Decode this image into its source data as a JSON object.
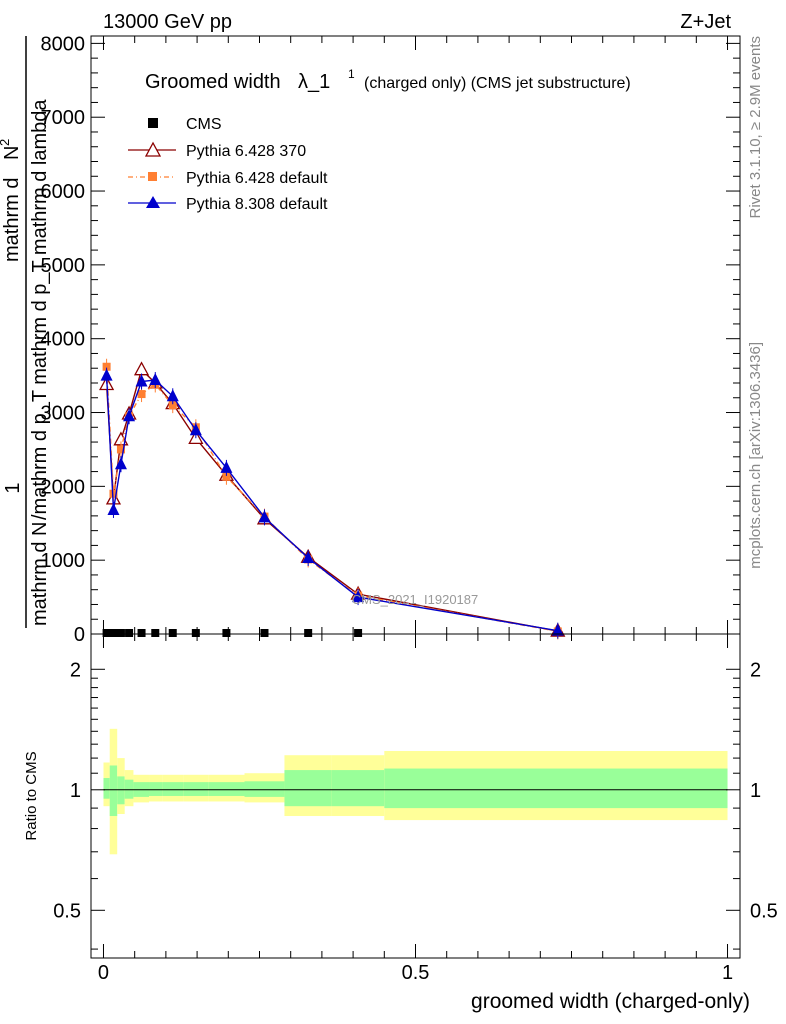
{
  "header": {
    "left": "13000 GeV pp",
    "right": "Z+Jet"
  },
  "side_text": {
    "rivet": "Rivet 3.1.10, ≥ 2.9M events",
    "mcplots": "mcplots.cern.ch [arXiv:1306.3436]"
  },
  "watermark": "CMS_2021_I1920187",
  "chart_data": [
    {
      "type": "line",
      "title_main": "Groomed width",
      "title_symbol": "λ_1",
      "title_sup": "1",
      "title_rest": "(charged only) (CMS jet substructure)",
      "ylabel_parts": [
        "1",
        "mathrm d N",
        "mathrm d N / mathrm d p",
        "T",
        "mathrm d p",
        "T",
        "mathrm d lambda",
        "mathrm d",
        "2",
        "N"
      ],
      "ylabel_frac_numerator": "1",
      "ylabel_denominator": "mathrm d N",
      "ylabel_rest": "/mathrm d p_T mathrm d p_T mathrm d lambda",
      "ylabel_top": "mathrm d",
      "ylabel_top_sup": "2",
      "ylabel_top_n": "N",
      "yticks": [
        "0",
        "1000",
        "2000",
        "3000",
        "4000",
        "5000",
        "6000",
        "7000",
        "8000"
      ],
      "ylim": [
        0,
        8100
      ],
      "xlim": [
        -0.02,
        1.02
      ],
      "legend": {
        "placement": "top-left",
        "entries": [
          "CMS",
          "Pythia 6.428 370",
          "Pythia 6.428 default",
          "Pythia 8.308 default"
        ]
      },
      "series": [
        {
          "name": "CMS",
          "color": "#000000",
          "marker": "square",
          "x": [
            0.005,
            0.016,
            0.028,
            0.041,
            0.061,
            0.083,
            0.111,
            0.148,
            0.197,
            0.258,
            0.328,
            0.408
          ],
          "y": [
            0,
            0,
            0,
            0,
            0,
            0,
            0,
            0,
            0,
            0,
            0,
            0
          ]
        },
        {
          "name": "Pythia 6.428 370",
          "color": "#8b0000",
          "marker": "open-triangle",
          "x": [
            0.005,
            0.016,
            0.028,
            0.041,
            0.061,
            0.083,
            0.111,
            0.148,
            0.197,
            0.258,
            0.328,
            0.408,
            0.728
          ],
          "y": [
            3380,
            1830,
            2630,
            2980,
            3580,
            3400,
            3120,
            2650,
            2150,
            1560,
            1040,
            540,
            40
          ]
        },
        {
          "name": "Pythia 6.428 default",
          "color": "#ff7f32",
          "marker": "square",
          "x": [
            0.005,
            0.016,
            0.028,
            0.041,
            0.061,
            0.083,
            0.111,
            0.148,
            0.197,
            0.258,
            0.328,
            0.408,
            0.728
          ],
          "y": [
            3620,
            1900,
            2500,
            2950,
            3250,
            3380,
            3100,
            2800,
            2130,
            1590,
            1010,
            520,
            35
          ]
        },
        {
          "name": "Pythia 8.308 default",
          "color": "#0000cc",
          "marker": "filled-triangle",
          "x": [
            0.005,
            0.016,
            0.028,
            0.041,
            0.061,
            0.083,
            0.111,
            0.148,
            0.197,
            0.258,
            0.328,
            0.408,
            0.728
          ],
          "y": [
            3500,
            1680,
            2300,
            2950,
            3420,
            3440,
            3220,
            2760,
            2250,
            1580,
            1030,
            500,
            45
          ]
        }
      ]
    },
    {
      "type": "area",
      "ylabel": "Ratio to CMS",
      "xlabel": "groomed width (charged-only)",
      "xticks": [
        "0",
        "0.5",
        "1"
      ],
      "yticks": [
        "0.5",
        "1",
        "2"
      ],
      "ylim": [
        0.38,
        2.45
      ],
      "xlim": [
        -0.02,
        1.02
      ],
      "bands": {
        "edges": [
          0.0,
          0.01,
          0.022,
          0.034,
          0.048,
          0.073,
          0.094,
          0.128,
          0.168,
          0.226,
          0.29,
          0.366,
          0.45,
          1.0
        ],
        "yellow_up": [
          1.17,
          1.42,
          1.2,
          1.12,
          1.09,
          1.09,
          1.09,
          1.09,
          1.09,
          1.1,
          1.22,
          1.22,
          1.25
        ],
        "yellow_down": [
          0.91,
          0.69,
          0.87,
          0.91,
          0.93,
          0.935,
          0.935,
          0.935,
          0.935,
          0.93,
          0.86,
          0.86,
          0.84
        ],
        "green_up": [
          1.07,
          1.15,
          1.08,
          1.06,
          1.045,
          1.045,
          1.045,
          1.045,
          1.045,
          1.05,
          1.12,
          1.12,
          1.13
        ],
        "green_down": [
          0.95,
          0.86,
          0.92,
          0.95,
          0.96,
          0.965,
          0.965,
          0.965,
          0.965,
          0.96,
          0.91,
          0.91,
          0.9
        ],
        "yellow_color": "#ffff99",
        "green_color": "#99ff99"
      },
      "reference": 1
    }
  ]
}
